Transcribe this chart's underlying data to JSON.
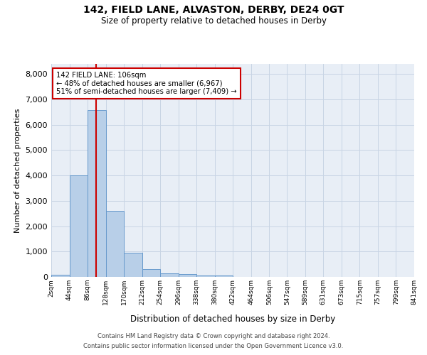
{
  "title1": "142, FIELD LANE, ALVASTON, DERBY, DE24 0GT",
  "title2": "Size of property relative to detached houses in Derby",
  "xlabel": "Distribution of detached houses by size in Derby",
  "ylabel": "Number of detached properties",
  "bar_edges": [
    2,
    44,
    86,
    128,
    170,
    212,
    254,
    296,
    338,
    380,
    422,
    464,
    506,
    547,
    589,
    631,
    673,
    715,
    757,
    799,
    841
  ],
  "bar_heights": [
    80,
    4000,
    6570,
    2600,
    960,
    310,
    140,
    100,
    60,
    60,
    0,
    0,
    0,
    0,
    0,
    0,
    0,
    0,
    0,
    0
  ],
  "bar_color": "#b8cfe8",
  "bar_edgecolor": "#6699cc",
  "grid_color": "#c8d4e4",
  "background_color": "#e8eef6",
  "vline_x": 106,
  "vline_color": "#cc0000",
  "annotation_box_color": "#cc0000",
  "annotation_line1": "142 FIELD LANE: 106sqm",
  "annotation_line2": "← 48% of detached houses are smaller (6,967)",
  "annotation_line3": "51% of semi-detached houses are larger (7,409) →",
  "ylim": [
    0,
    8400
  ],
  "yticks": [
    0,
    1000,
    2000,
    3000,
    4000,
    5000,
    6000,
    7000,
    8000
  ],
  "tick_labels": [
    "2sqm",
    "44sqm",
    "86sqm",
    "128sqm",
    "170sqm",
    "212sqm",
    "254sqm",
    "296sqm",
    "338sqm",
    "380sqm",
    "422sqm",
    "464sqm",
    "506sqm",
    "547sqm",
    "589sqm",
    "631sqm",
    "673sqm",
    "715sqm",
    "757sqm",
    "799sqm",
    "841sqm"
  ],
  "footnote1": "Contains HM Land Registry data © Crown copyright and database right 2024.",
  "footnote2": "Contains public sector information licensed under the Open Government Licence v3.0."
}
